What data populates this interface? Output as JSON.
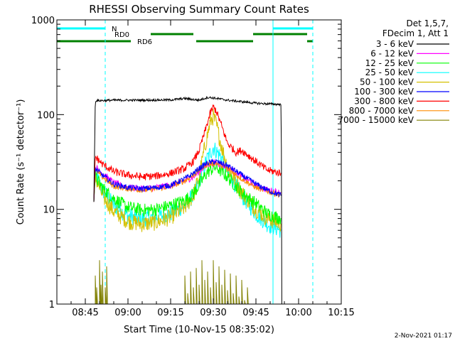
{
  "chart_data": {
    "type": "line",
    "title": "RHESSI Observing Summary Count Rates",
    "xlabel": "Start Time (10-Nov-15 08:35:02)",
    "ylabel": "Count Rate (s⁻¹ detector⁻¹)",
    "y_scale": "log",
    "ylim": [
      1,
      1000
    ],
    "xlim_minutes": [
      0,
      100
    ],
    "x_ticks": [
      "08:45",
      "09:00",
      "09:15",
      "09:30",
      "09:45",
      "10:00",
      "10:15"
    ],
    "y_ticks": [
      "1",
      "10",
      "100",
      "1000"
    ],
    "legend_header": [
      "Det 1,5,7,",
      "FDecim 1, Att 1"
    ],
    "legend_position": "right",
    "date_stamp": "2-Nov-2021 01:17",
    "x_minutes_note": "x values in minutes after 08:35:02",
    "flags": [
      {
        "label": "N",
        "color": "#00ffff",
        "segments": [
          [
            0,
            17
          ],
          [
            76,
            90
          ]
        ]
      },
      {
        "label": "RD0",
        "color": "#008000",
        "segments": [
          [
            33,
            48
          ],
          [
            69,
            88
          ]
        ]
      },
      {
        "label": "RD6",
        "color": "#008000",
        "segments": [
          [
            0,
            26
          ],
          [
            49,
            69
          ],
          [
            88,
            90
          ]
        ]
      }
    ],
    "vlines_solid": [
      0,
      76
    ],
    "vlines_dashed": [
      17,
      90
    ],
    "series": [
      {
        "name": "3 - 6 keV",
        "color": "#000000",
        "x": [
          13,
          13.5,
          20,
          30,
          40,
          45,
          50,
          53,
          55,
          60,
          70,
          74,
          78.9,
          79,
          79.1
        ],
        "y": [
          12,
          140,
          142,
          142,
          143,
          148,
          142,
          152,
          150,
          142,
          132,
          130,
          128,
          12,
          1
        ]
      },
      {
        "name": "6 - 12 keV",
        "color": "#ff00ff",
        "x": [
          13,
          13.5,
          16,
          20,
          25,
          30,
          35,
          40,
          45,
          48,
          50,
          53,
          56,
          60,
          65,
          70,
          74,
          78.9
        ],
        "y": [
          12,
          28,
          24,
          19,
          17,
          16.5,
          17,
          18,
          20,
          22,
          25,
          30,
          31,
          28,
          22,
          18,
          16,
          15
        ]
      },
      {
        "name": "12 - 25 keV",
        "color": "#00ff00",
        "x": [
          13,
          13.5,
          16,
          20,
          25,
          30,
          35,
          40,
          45,
          48,
          50,
          53,
          56,
          60,
          65,
          70,
          74,
          78.9
        ],
        "y": [
          12,
          22,
          17,
          13,
          10.5,
          9.8,
          10,
          11,
          12.5,
          14.5,
          18,
          25,
          28,
          22,
          15,
          11.5,
          9,
          8
        ]
      },
      {
        "name": "25 - 50 keV",
        "color": "#00ffff",
        "x": [
          13,
          13.5,
          16,
          20,
          25,
          30,
          35,
          40,
          45,
          48,
          50,
          53,
          55,
          58,
          60,
          65,
          70,
          74,
          78.9
        ],
        "y": [
          12,
          24,
          16,
          11,
          8.5,
          8,
          8.3,
          9,
          11,
          14,
          20,
          35,
          45,
          35,
          25,
          14,
          9,
          7,
          6
        ]
      },
      {
        "name": "50 - 100 keV",
        "color": "#d4c000",
        "x": [
          13,
          13.5,
          16,
          20,
          25,
          30,
          35,
          40,
          45,
          48,
          50,
          52,
          54,
          55,
          56,
          58,
          60,
          65,
          70,
          74,
          78.9
        ],
        "y": [
          12,
          22,
          14,
          9.5,
          7.5,
          7,
          7.3,
          8.3,
          10.5,
          14,
          22,
          45,
          85,
          95,
          80,
          45,
          28,
          15,
          10,
          8,
          7
        ]
      },
      {
        "name": "100 - 300 keV",
        "color": "#0000ff",
        "x": [
          13,
          13.5,
          16,
          20,
          25,
          30,
          35,
          40,
          45,
          48,
          50,
          53,
          56,
          60,
          65,
          70,
          74,
          78.9
        ],
        "y": [
          12,
          27,
          23,
          18.5,
          17,
          16.5,
          17,
          18,
          21,
          24,
          27,
          31,
          32,
          29,
          23,
          18.5,
          16,
          14
        ]
      },
      {
        "name": "300 - 800 keV",
        "color": "#ff0000",
        "x": [
          13,
          13.5,
          16,
          20,
          25,
          30,
          35,
          40,
          45,
          48,
          50,
          52,
          54,
          55,
          56,
          58,
          60,
          63,
          65,
          70,
          74,
          78.9
        ],
        "y": [
          12,
          36,
          30,
          25,
          23,
          22,
          22.5,
          24,
          27,
          32,
          42,
          65,
          105,
          120,
          110,
          75,
          50,
          40,
          42,
          32,
          26,
          24
        ]
      },
      {
        "name": "800 - 7000 keV",
        "color": "#ff8c00",
        "x": [
          13,
          13.5,
          16,
          20,
          25,
          30,
          35,
          40,
          45,
          48,
          50,
          53,
          56,
          60,
          65,
          70,
          74,
          78.9
        ],
        "y": [
          12,
          26,
          22,
          17.5,
          16.5,
          16,
          16.5,
          17.5,
          20,
          23,
          26,
          30,
          31,
          27,
          21,
          17,
          15.5,
          14
        ]
      },
      {
        "name": "7000 - 15000 keV",
        "color": "#808000",
        "x": [
          13,
          13.5,
          14,
          15,
          15.5,
          16,
          17,
          17.5,
          18,
          44,
          45,
          46,
          47,
          48,
          49,
          50,
          51,
          52,
          53,
          54,
          55,
          56,
          57,
          58,
          59,
          60,
          61,
          62,
          63,
          64,
          65,
          66,
          67,
          68
        ],
        "y": [
          1,
          2,
          1.5,
          2.9,
          1.6,
          2.2,
          1.5,
          2.5,
          1,
          1,
          2,
          1.3,
          2.2,
          1.5,
          2.4,
          1.6,
          2.9,
          1.8,
          2.2,
          1.5,
          2.9,
          1.7,
          2.5,
          1.6,
          2.3,
          1.4,
          2.1,
          1.3,
          2.0,
          1.2,
          1.8,
          1.1,
          1.5,
          1
        ]
      }
    ]
  }
}
